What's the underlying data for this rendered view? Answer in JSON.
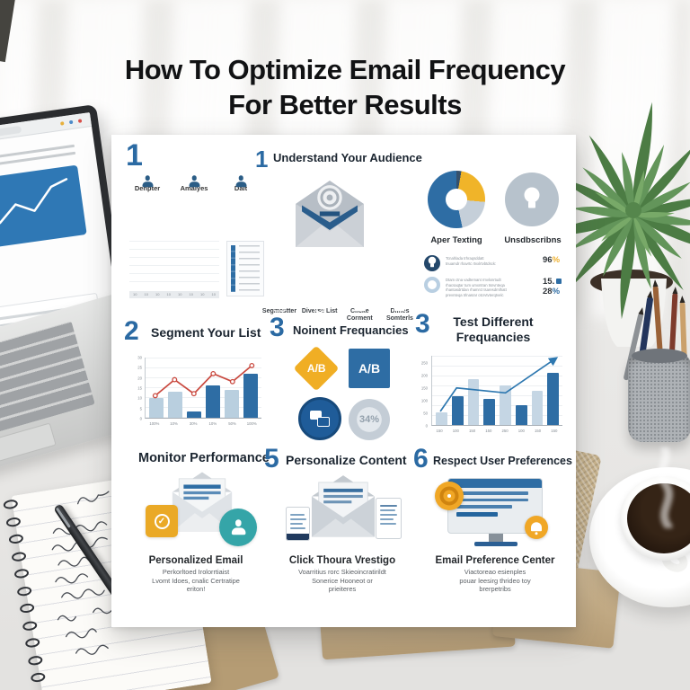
{
  "title": {
    "line1": "How To Optimize Email Frequency",
    "line2": "For Better Results"
  },
  "colors": {
    "accent_blue": "#2e6da4",
    "accent_yellow": "#f0b429",
    "accent_teal": "#37a8a3",
    "accent_red": "#d64a45"
  },
  "infographic": {
    "section1": {
      "number": "1",
      "avatars": [
        {
          "label": "Denpter"
        },
        {
          "label": "Amalyes"
        },
        {
          "label": "Dait"
        }
      ]
    },
    "section2": {
      "number": "1",
      "title": "Understand Your Audience",
      "icons": [
        {
          "label": "Segmestter"
        },
        {
          "label": "Diverse List"
        },
        {
          "label": "Clicke Corment"
        },
        {
          "label": "Diines Somterls"
        }
      ]
    },
    "section3": {
      "pie_label": "Aper Texting",
      "bulb_label": "Unsdbscribns",
      "stat1": {
        "lines": [
          "Tcnahlada trhraqsddatt",
          "tnuamdr rhavrtc rtvxlrtvbtdsck:"
        ],
        "value": "96",
        "unit": "%"
      },
      "stat2": {
        "lines": [
          "Dtam ctna vadtemant rmvlxnrtudt",
          "rhacsaqtar tum umxntran tsnvnteqa",
          "rhantasdrtdan rhamrct tsaresdrnlhatt",
          "prevnteqa trlnasrar otcrvtvterqtvelc"
        ],
        "value1": "15.",
        "value2": "28",
        "unit2": "%"
      }
    },
    "section4": {
      "number": "2",
      "title": "Segment Your List"
    },
    "section5": {
      "number": "3",
      "title": "Noinent Frequancies",
      "ab_diamond": "A/B",
      "ab_square": "A/B",
      "percent_badge": "34%"
    },
    "section6": {
      "number": "3",
      "title_line1": "Test Different",
      "title_line2": "Frequancies"
    },
    "section7": {
      "title": "Monitor Performance",
      "caption_title": "Personalized Email",
      "caption_lines": [
        "Perkorltoed Irolorrtiaist",
        "Lvomt Idoes, cnalic Certratipe",
        "eriton!"
      ]
    },
    "section8": {
      "number": "5",
      "title": "Personalize Content",
      "caption_title": "Click Thoura Vrestigo",
      "caption_lines": [
        "Voarritius rorc Skieoincratirildt",
        "Sonerice Hooneot or",
        "prieiteres"
      ]
    },
    "section9": {
      "number": "6",
      "title": "Respect User Preferences",
      "caption_title": "Email Preference Center",
      "caption_lines": [
        "Viactoreao esienples",
        "pouar leesirg thrideo toy",
        "brerpetribs"
      ]
    }
  },
  "chart_data": [
    {
      "id": "audience-engagement-bars",
      "type": "bar",
      "stacked": true,
      "categories": [
        "10",
        "10",
        "10",
        "10",
        "10",
        "10",
        "10",
        "10"
      ],
      "series": [
        {
          "name": "primary",
          "color": "#2e6da4",
          "values": [
            12,
            28,
            42,
            34,
            16,
            36,
            28,
            34
          ]
        },
        {
          "name": "secondary",
          "values": [
            5,
            0,
            0,
            20,
            8,
            28,
            14,
            22
          ],
          "colors": [
            "#f2c230",
            "",
            "",
            "#c3ccd4",
            "#f2c230",
            "#c3ccd4",
            "#f09d2e",
            "#f2c230"
          ]
        }
      ],
      "ylim": [
        0,
        70
      ],
      "grid": true
    },
    {
      "id": "segment-your-list-combo",
      "type": "bar+line",
      "categories": [
        "100%",
        "10%",
        "30%",
        "10%",
        "50%",
        "100%"
      ],
      "bar_values": [
        10,
        13,
        3,
        16,
        14,
        22
      ],
      "bar_colors": [
        "#b9cfdf",
        "#b9cfdf",
        "#2e6da4",
        "#2e6da4",
        "#b9cfdf",
        "#2e6da4"
      ],
      "line_values": [
        11,
        19,
        12,
        22,
        18,
        26
      ],
      "line_color": "#c9493f",
      "markers": true,
      "yticks": [
        0,
        5,
        10,
        15,
        20,
        25,
        30
      ],
      "ylim": [
        0,
        30
      ],
      "grid": true
    },
    {
      "id": "test-different-frequencies",
      "type": "bar+line",
      "categories": [
        "150",
        "100",
        "150",
        "150",
        "250",
        "100",
        "150",
        "150"
      ],
      "bar_values": [
        50,
        115,
        185,
        105,
        160,
        80,
        140,
        210
      ],
      "bar_colors": [
        "#c5d6e4",
        "#2e6da4",
        "#c5d6e4",
        "#2e6da4",
        "#c5d6e4",
        "#2e6da4",
        "#c5d6e4",
        "#2e6da4"
      ],
      "line_points": [
        {
          "x": 0,
          "v": 55
        },
        {
          "x": 1,
          "v": 150
        },
        {
          "x": 4,
          "v": 130
        },
        {
          "x": 7,
          "v": 265
        }
      ],
      "line_color": "#2e78b0",
      "arrow": true,
      "yticks": [
        0,
        50,
        100,
        150,
        200,
        250
      ],
      "ylim": [
        0,
        280
      ],
      "grid": true
    }
  ]
}
